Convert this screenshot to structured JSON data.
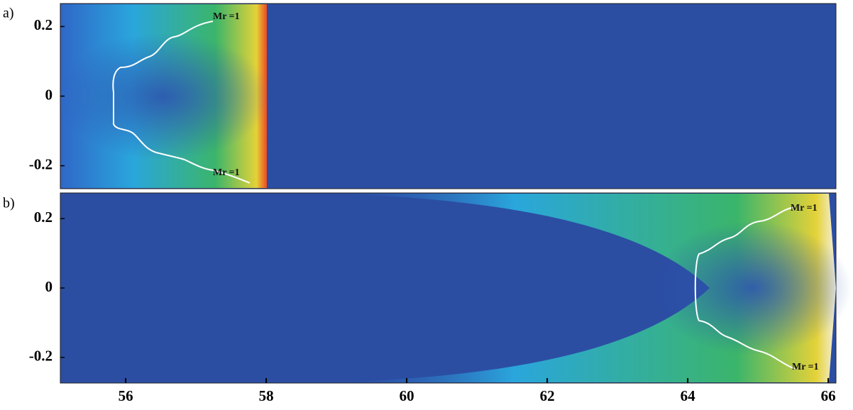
{
  "chart_data": [
    {
      "type": "contour",
      "panel_label": "a)",
      "annotations": [
        "Mr =1",
        "Mr =1"
      ],
      "xlim": [
        55.07,
        66.11
      ],
      "ylim": [
        -0.266,
        0.266
      ],
      "yticks": [
        0.2,
        0,
        -0.2
      ]
    },
    {
      "type": "contour",
      "panel_label": "b)",
      "annotations": [
        "Mr =1",
        "Mr =1"
      ],
      "xlim": [
        55.07,
        66.11
      ],
      "ylim": [
        -0.274,
        0.274
      ],
      "yticks": [
        0.2,
        0,
        -0.2
      ],
      "xticks": [
        56,
        58,
        60,
        62,
        64,
        66
      ]
    }
  ]
}
